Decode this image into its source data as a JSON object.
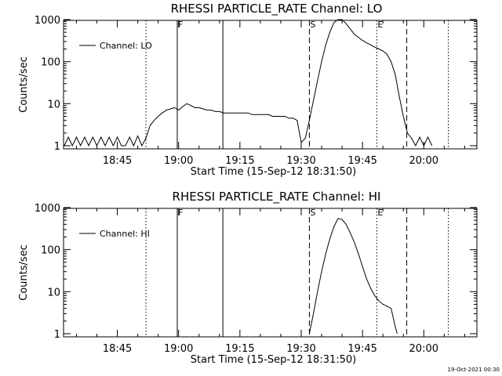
{
  "footer": {
    "timestamp": "19-Oct-2021 00:30"
  },
  "chart_data": [
    {
      "type": "line",
      "title": "RHESSI PARTICLE_RATE Channel: LO",
      "xlabel": "Start Time (15-Sep-12 18:31:50)",
      "ylabel": "Counts/sec",
      "y_scale": "log",
      "ylim": [
        1,
        1000
      ],
      "xlim": [
        "18:31:50",
        "20:13:00"
      ],
      "x_ticks": [
        "18:45",
        "19:00",
        "19:15",
        "19:30",
        "19:45",
        "20:00"
      ],
      "y_ticks": [
        "1",
        "10",
        "100",
        "1000"
      ],
      "legend": {
        "label": "Channel: LO",
        "placement": "top-left"
      },
      "event_markers": [
        {
          "time": "18:52:00",
          "style": "dotted",
          "label": ""
        },
        {
          "time": "18:59:40",
          "style": "solid",
          "label": "F"
        },
        {
          "time": "19:10:50",
          "style": "solid",
          "label": ""
        },
        {
          "time": "19:32:00",
          "style": "dashed",
          "label": "S"
        },
        {
          "time": "19:48:30",
          "style": "dotted",
          "label": "E"
        },
        {
          "time": "19:55:50",
          "style": "dashed",
          "label": ""
        },
        {
          "time": "20:06:00",
          "style": "dotted",
          "label": ""
        }
      ],
      "series": [
        {
          "name": "Channel: LO",
          "points": [
            [
              "18:32:00",
              1
            ],
            [
              "18:33:00",
              1.6
            ],
            [
              "18:34:00",
              1
            ],
            [
              "18:35:00",
              1.6
            ],
            [
              "18:36:00",
              1
            ],
            [
              "18:37:00",
              1.6
            ],
            [
              "18:38:00",
              1
            ],
            [
              "18:39:00",
              1.6
            ],
            [
              "18:40:00",
              1
            ],
            [
              "18:41:00",
              1.6
            ],
            [
              "18:42:00",
              1
            ],
            [
              "18:43:00",
              1.6
            ],
            [
              "18:44:00",
              1
            ],
            [
              "18:45:00",
              1.6
            ],
            [
              "18:46:00",
              1
            ],
            [
              "18:47:00",
              1
            ],
            [
              "18:48:00",
              1.6
            ],
            [
              "18:49:00",
              1
            ],
            [
              "18:50:00",
              1.7
            ],
            [
              "18:51:00",
              1
            ],
            [
              "18:52:00",
              1.5
            ],
            [
              "18:53:00",
              3
            ],
            [
              "18:54:00",
              4
            ],
            [
              "18:55:00",
              5
            ],
            [
              "18:56:00",
              6
            ],
            [
              "18:57:00",
              7
            ],
            [
              "18:58:00",
              7.5
            ],
            [
              "18:59:00",
              8
            ],
            [
              "19:00:00",
              7
            ],
            [
              "19:01:00",
              8.5
            ],
            [
              "19:02:00",
              10
            ],
            [
              "19:03:00",
              9
            ],
            [
              "19:04:00",
              8
            ],
            [
              "19:05:00",
              8
            ],
            [
              "19:06:00",
              7.5
            ],
            [
              "19:07:00",
              7
            ],
            [
              "19:08:00",
              7
            ],
            [
              "19:09:00",
              6.5
            ],
            [
              "19:10:00",
              6.5
            ],
            [
              "19:11:00",
              6
            ],
            [
              "19:12:00",
              6
            ],
            [
              "19:13:00",
              6
            ],
            [
              "19:14:00",
              6
            ],
            [
              "19:15:00",
              6
            ],
            [
              "19:16:00",
              6
            ],
            [
              "19:17:00",
              6
            ],
            [
              "19:18:00",
              5.5
            ],
            [
              "19:19:00",
              5.5
            ],
            [
              "19:20:00",
              5.5
            ],
            [
              "19:21:00",
              5.5
            ],
            [
              "19:22:00",
              5.5
            ],
            [
              "19:23:00",
              5
            ],
            [
              "19:24:00",
              5
            ],
            [
              "19:25:00",
              5
            ],
            [
              "19:26:00",
              5
            ],
            [
              "19:27:00",
              4.5
            ],
            [
              "19:28:00",
              4.5
            ],
            [
              "19:29:00",
              4
            ],
            [
              "19:30:00",
              1.2
            ],
            [
              "19:31:00",
              1.5
            ],
            [
              "19:32:00",
              4
            ],
            [
              "19:33:00",
              12
            ],
            [
              "19:34:00",
              35
            ],
            [
              "19:35:00",
              100
            ],
            [
              "19:36:00",
              250
            ],
            [
              "19:37:00",
              500
            ],
            [
              "19:38:00",
              850
            ],
            [
              "19:39:00",
              1000
            ],
            [
              "19:40:00",
              1000
            ],
            [
              "19:41:00",
              800
            ],
            [
              "19:42:00",
              600
            ],
            [
              "19:43:00",
              450
            ],
            [
              "19:44:00",
              380
            ],
            [
              "19:45:00",
              320
            ],
            [
              "19:46:00",
              280
            ],
            [
              "19:47:00",
              250
            ],
            [
              "19:48:00",
              220
            ],
            [
              "19:49:00",
              200
            ],
            [
              "19:50:00",
              180
            ],
            [
              "19:51:00",
              150
            ],
            [
              "19:52:00",
              100
            ],
            [
              "19:53:00",
              50
            ],
            [
              "19:54:00",
              15
            ],
            [
              "19:55:00",
              5
            ],
            [
              "19:56:00",
              2
            ],
            [
              "19:57:00",
              1.5
            ],
            [
              "19:58:00",
              1
            ],
            [
              "19:59:00",
              1.6
            ],
            [
              "20:00:00",
              1
            ],
            [
              "20:01:00",
              1.6
            ],
            [
              "20:02:00",
              1
            ]
          ]
        }
      ]
    },
    {
      "type": "line",
      "title": "RHESSI PARTICLE_RATE Channel: HI",
      "xlabel": "Start Time (15-Sep-12 18:31:50)",
      "ylabel": "Counts/sec",
      "y_scale": "log",
      "ylim": [
        1,
        1000
      ],
      "xlim": [
        "18:31:50",
        "20:13:00"
      ],
      "x_ticks": [
        "18:45",
        "19:00",
        "19:15",
        "19:30",
        "19:45",
        "20:00"
      ],
      "y_ticks": [
        "1",
        "10",
        "100",
        "1000"
      ],
      "legend": {
        "label": "Channel: HI",
        "placement": "top-left"
      },
      "event_markers": [
        {
          "time": "18:52:00",
          "style": "dotted",
          "label": ""
        },
        {
          "time": "18:59:40",
          "style": "solid",
          "label": "F"
        },
        {
          "time": "19:10:50",
          "style": "solid",
          "label": ""
        },
        {
          "time": "19:32:00",
          "style": "dashed",
          "label": "S"
        },
        {
          "time": "19:48:30",
          "style": "dotted",
          "label": "E"
        },
        {
          "time": "19:55:50",
          "style": "dashed",
          "label": ""
        },
        {
          "time": "20:06:00",
          "style": "dotted",
          "label": ""
        }
      ],
      "series": [
        {
          "name": "Channel: HI",
          "points": [
            [
              "19:32:00",
              1
            ],
            [
              "19:33:00",
              3
            ],
            [
              "19:34:00",
              10
            ],
            [
              "19:35:00",
              30
            ],
            [
              "19:36:00",
              80
            ],
            [
              "19:37:00",
              180
            ],
            [
              "19:38:00",
              350
            ],
            [
              "19:39:00",
              550
            ],
            [
              "19:40:00",
              520
            ],
            [
              "19:41:00",
              400
            ],
            [
              "19:42:00",
              250
            ],
            [
              "19:43:00",
              150
            ],
            [
              "19:44:00",
              80
            ],
            [
              "19:45:00",
              40
            ],
            [
              "19:46:00",
              20
            ],
            [
              "19:47:00",
              12
            ],
            [
              "19:48:00",
              8
            ],
            [
              "19:49:00",
              6
            ],
            [
              "19:50:00",
              5
            ],
            [
              "19:51:00",
              4.5
            ],
            [
              "19:52:00",
              4
            ],
            [
              "19:53:00",
              1.5
            ],
            [
              "19:53:30",
              1
            ]
          ]
        }
      ]
    }
  ]
}
